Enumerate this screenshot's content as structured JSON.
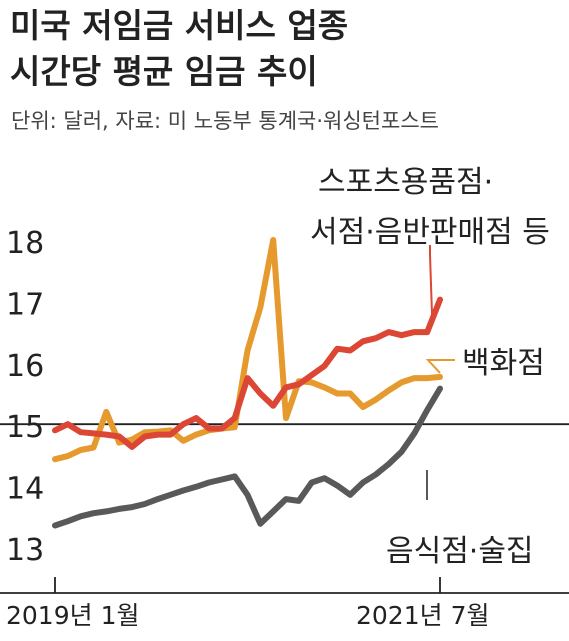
{
  "title_lines": [
    "미국 저임금 서비스 업종",
    "시간당 평균 임금 추이"
  ],
  "unit_note": "단위: 달러, 자료: 미 노동부 통계국·워싱턴포스트",
  "colors": {
    "restaurants": "#595959",
    "department_stores": "#e69a2e",
    "sporting_book_music": "#dc4634",
    "axis": "#222222",
    "text": "#222222"
  },
  "chart_data": {
    "type": "line",
    "title": "미국 저임금 서비스 업종 시간당 평균 임금 추이",
    "unit": "단위: 달러",
    "source": "자료: 미 노동부 통계국·워싱턴포스트",
    "ylim": [
      13,
      18
    ],
    "y_ticks": [
      "13",
      "14",
      "15",
      "16",
      "17",
      "18"
    ],
    "x_tick_labels": [
      "2019년 1월",
      "2021년 7월"
    ],
    "x": [
      "2019-01",
      "2019-02",
      "2019-03",
      "2019-04",
      "2019-05",
      "2019-06",
      "2019-07",
      "2019-08",
      "2019-09",
      "2019-10",
      "2019-11",
      "2019-12",
      "2020-01",
      "2020-02",
      "2020-03",
      "2020-04",
      "2020-05",
      "2020-06",
      "2020-07",
      "2020-08",
      "2020-09",
      "2020-10",
      "2020-11",
      "2020-12",
      "2021-01",
      "2021-02",
      "2021-03",
      "2021-04",
      "2021-05",
      "2021-06",
      "2021-07"
    ],
    "reference_line": 15,
    "grid": false,
    "series": [
      {
        "key": "sporting_book_music",
        "name_lines": [
          "스포츠용품점·",
          "서점·음반판매점 등"
        ],
        "values": [
          14.9,
          15.0,
          14.87,
          14.85,
          14.83,
          14.8,
          14.63,
          14.8,
          14.83,
          14.83,
          15.0,
          15.1,
          14.93,
          14.93,
          15.1,
          15.75,
          15.5,
          15.3,
          15.6,
          15.65,
          15.8,
          15.95,
          16.23,
          16.2,
          16.35,
          16.4,
          16.5,
          16.45,
          16.5,
          16.5,
          17.03
        ]
      },
      {
        "key": "department_stores",
        "name_lines": [
          "백화점"
        ],
        "values": [
          14.43,
          14.48,
          14.58,
          14.62,
          15.2,
          14.7,
          14.75,
          14.87,
          14.88,
          14.9,
          14.73,
          14.83,
          14.9,
          14.93,
          14.95,
          16.2,
          16.9,
          18.0,
          15.1,
          15.7,
          15.68,
          15.6,
          15.5,
          15.5,
          15.28,
          15.4,
          15.55,
          15.68,
          15.75,
          15.75,
          15.77
        ]
      },
      {
        "key": "restaurants",
        "name_lines": [
          "음식점·술집"
        ],
        "values": [
          13.35,
          13.42,
          13.5,
          13.55,
          13.58,
          13.62,
          13.65,
          13.7,
          13.78,
          13.85,
          13.92,
          13.98,
          14.05,
          14.1,
          14.15,
          13.85,
          13.38,
          13.58,
          13.78,
          13.75,
          14.05,
          14.12,
          14.0,
          13.85,
          14.05,
          14.18,
          14.35,
          14.55,
          14.85,
          15.23,
          15.58
        ]
      }
    ]
  }
}
